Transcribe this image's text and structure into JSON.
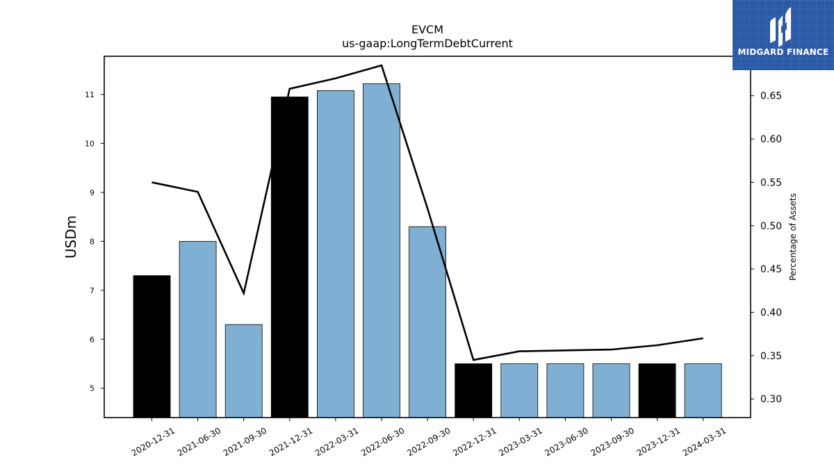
{
  "chart_data": {
    "type": "bar",
    "title": "EVCM",
    "subtitle": "us-gaap:LongTermDebtCurrent",
    "ylabel": "USDm",
    "y2label": "Percentage of Assets",
    "categories": [
      "2020-12-31",
      "2021-06-30",
      "2021-09-30",
      "2021-12-31",
      "2022-03-31",
      "2022-06-30",
      "2022-09-30",
      "2022-12-31",
      "2023-03-31",
      "2023-06-30",
      "2023-09-30",
      "2023-12-31",
      "2024-03-31"
    ],
    "series": [
      {
        "values": [
          7.3,
          8.0,
          6.3,
          10.95,
          11.08,
          11.22,
          8.3,
          5.5,
          5.5,
          5.5,
          5.5,
          5.5,
          5.5
        ],
        "highlight": [
          true,
          false,
          false,
          true,
          false,
          false,
          false,
          true,
          false,
          false,
          false,
          true,
          false
        ],
        "color": "#7fb0d3",
        "highlight_color": "#000000",
        "axis": "left"
      },
      {
        "type": "line",
        "values": [
          0.55,
          0.539,
          0.422,
          0.658,
          0.67,
          0.685,
          0.52,
          0.345,
          0.355,
          0.356,
          0.357,
          0.362,
          0.37
        ],
        "color": "#000000",
        "axis": "right"
      }
    ],
    "ylim": [
      4.4,
      11.78
    ],
    "y2lim": [
      0.2785,
      0.6955
    ],
    "yticks": [
      "5",
      "6",
      "7",
      "8",
      "9",
      "10",
      "11"
    ],
    "y2ticks": [
      "0.30",
      "0.35",
      "0.40",
      "0.45",
      "0.50",
      "0.55",
      "0.60",
      "0.65"
    ],
    "grid": false,
    "legend": "none"
  },
  "logo": {
    "text": "MIDGARD FINANCE",
    "color": "#2b5aa6"
  }
}
